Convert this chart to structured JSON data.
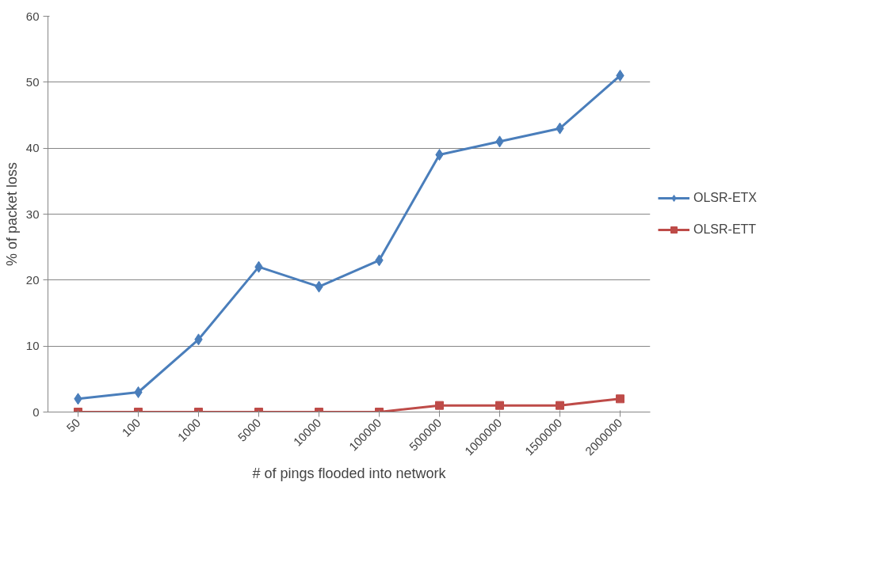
{
  "chart_data": {
    "type": "line",
    "xlabel": "# of pings flooded into network",
    "ylabel": "% of packet loss",
    "categories": [
      "50",
      "100",
      "1000",
      "5000",
      "10000",
      "100000",
      "500000",
      "1000000",
      "1500000",
      "2000000"
    ],
    "series": [
      {
        "name": "OLSR-ETX",
        "color": "#4a7ebb",
        "marker": "diamond",
        "values": [
          2,
          3,
          11,
          22,
          19,
          23,
          39,
          41,
          43,
          51
        ]
      },
      {
        "name": "OLSR-ETT",
        "color": "#be4b48",
        "marker": "square",
        "values": [
          0,
          0,
          0,
          0,
          0,
          0,
          1,
          1,
          1,
          2
        ]
      }
    ],
    "ylim": [
      0,
      60
    ],
    "yticks": [
      0,
      10,
      20,
      30,
      40,
      50,
      60
    ],
    "grid": "y",
    "legend": "right",
    "line_style": "solid"
  }
}
